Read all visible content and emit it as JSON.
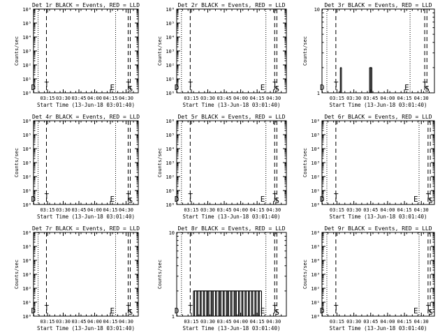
{
  "chart_data": [
    {
      "type": "line",
      "title": "Det 1r BLACK = Events, RED = LLD",
      "xlabel": "Start Time (13-Jun-18 03:01:40)",
      "ylabel": "Counts/sec",
      "ylog": true,
      "ylim": [
        1,
        1000000
      ],
      "yticks": [
        "10⁰",
        "10¹",
        "10²",
        "10³",
        "10⁴",
        "10⁵",
        "10⁶"
      ],
      "xlim": [
        "03:01:40",
        "04:41:40"
      ],
      "xticks": [
        "03:15",
        "03:30",
        "03:45",
        "04:00",
        "04:15",
        "04:30"
      ],
      "markers": [
        {
          "time": "03:06",
          "style": "dotted",
          "label": "D"
        },
        {
          "time": "03:14",
          "style": "dashed",
          "label": "T"
        },
        {
          "time": "04:20",
          "style": "dotted",
          "label": "E"
        },
        {
          "time": "04:32",
          "style": "dashed",
          "label": "T"
        },
        {
          "time": "04:34",
          "style": "dashed",
          "label": "S"
        }
      ],
      "series": []
    },
    {
      "type": "line",
      "title": "Det 2r BLACK = Events, RED = LLD",
      "xlabel": "Start Time (13-Jun-18 03:01:40)",
      "ylabel": "Counts/sec",
      "ylog": true,
      "ylim": [
        1,
        1000000
      ],
      "yticks": [
        "10⁰",
        "10¹",
        "10²",
        "10³",
        "10⁴",
        "10⁵",
        "10⁶"
      ],
      "xlim": [
        "03:01:40",
        "04:41:40"
      ],
      "xticks": [
        "03:15",
        "03:30",
        "03:45",
        "04:00",
        "04:15",
        "04:30"
      ],
      "markers": [
        {
          "time": "03:06",
          "style": "dotted",
          "label": "D"
        },
        {
          "time": "03:14",
          "style": "dashed",
          "label": "T"
        },
        {
          "time": "04:23",
          "style": "dotted",
          "label": "E"
        },
        {
          "time": "04:31",
          "style": "dashed",
          "label": "T"
        },
        {
          "time": "04:33",
          "style": "dashed",
          "label": "S"
        }
      ],
      "series": []
    },
    {
      "type": "line",
      "title": "Det 3r BLACK = Events, RED = LLD",
      "xlabel": "Start Time (13-Jun-18 03:01:40)",
      "ylabel": "Counts/sec",
      "ylog": true,
      "ylim": [
        1,
        10
      ],
      "yticks": [
        "1",
        "10"
      ],
      "xlim": [
        "03:01:40",
        "04:41:40"
      ],
      "xticks": [
        "03:15",
        "03:30",
        "03:45",
        "04:00",
        "04:15",
        "04:30"
      ],
      "markers": [
        {
          "time": "03:06",
          "style": "dotted",
          "label": "D"
        },
        {
          "time": "03:14",
          "style": "dashed",
          "label": "T"
        },
        {
          "time": "04:20",
          "style": "dotted",
          "label": "E"
        },
        {
          "time": "04:33",
          "style": "dashed",
          "label": "T"
        },
        {
          "time": "04:35",
          "style": "dashed",
          "label": "S"
        }
      ],
      "series": [
        {
          "color": "#000000",
          "spikes": [
            {
              "time": "03:18",
              "value": 2
            },
            {
              "time": "03:19",
              "value": 2
            },
            {
              "time": "03:44",
              "value": 2
            },
            {
              "time": "03:45",
              "value": 2
            },
            {
              "time": "03:46",
              "value": 2
            }
          ]
        }
      ]
    },
    {
      "type": "line",
      "title": "Det 4r BLACK = Events, RED = LLD",
      "xlabel": "Start Time (13-Jun-18 03:01:40)",
      "ylabel": "Counts/sec",
      "ylog": true,
      "ylim": [
        1,
        1000000
      ],
      "yticks": [
        "10⁰",
        "10¹",
        "10²",
        "10³",
        "10⁴",
        "10⁵",
        "10⁶"
      ],
      "xlim": [
        "03:01:40",
        "04:41:40"
      ],
      "xticks": [
        "03:15",
        "03:30",
        "03:45",
        "04:00",
        "04:15",
        "04:30"
      ],
      "markers": [
        {
          "time": "03:06",
          "style": "dotted",
          "label": "D"
        },
        {
          "time": "03:14",
          "style": "dashed",
          "label": "T"
        },
        {
          "time": "04:20",
          "style": "dotted",
          "label": "E"
        },
        {
          "time": "04:32",
          "style": "dashed",
          "label": "T"
        },
        {
          "time": "04:34",
          "style": "dashed",
          "label": "S"
        }
      ],
      "series": []
    },
    {
      "type": "line",
      "title": "Det 5r BLACK = Events, RED = LLD",
      "xlabel": "Start Time (13-Jun-18 03:01:40)",
      "ylabel": "Counts/sec",
      "ylog": true,
      "ylim": [
        1,
        1000000
      ],
      "yticks": [
        "10⁰",
        "10¹",
        "10²",
        "10³",
        "10⁴",
        "10⁵",
        "10⁶"
      ],
      "xlim": [
        "03:01:40",
        "04:41:40"
      ],
      "xticks": [
        "03:15",
        "03:30",
        "03:45",
        "04:00",
        "04:15",
        "04:30"
      ],
      "markers": [
        {
          "time": "03:06",
          "style": "dotted",
          "label": "D"
        },
        {
          "time": "03:14",
          "style": "dashed",
          "label": "T"
        },
        {
          "time": "04:23",
          "style": "dotted",
          "label": "E"
        },
        {
          "time": "04:31",
          "style": "dashed",
          "label": "T"
        },
        {
          "time": "04:33",
          "style": "dashed",
          "label": "S"
        }
      ],
      "series": []
    },
    {
      "type": "line",
      "title": "Det 6r BLACK = Events, RED = LLD",
      "xlabel": "Start Time (13-Jun-18 03:01:40)",
      "ylabel": "Counts/sec",
      "ylog": true,
      "ylim": [
        1,
        1000000
      ],
      "yticks": [
        "10⁰",
        "10¹",
        "10²",
        "10³",
        "10⁴",
        "10⁵",
        "10⁶"
      ],
      "xlim": [
        "03:01:40",
        "04:41:40"
      ],
      "xticks": [
        "03:15",
        "03:30",
        "03:45",
        "04:00",
        "04:15",
        "04:30"
      ],
      "markers": [
        {
          "time": "03:06",
          "style": "dotted",
          "label": "D"
        },
        {
          "time": "03:14",
          "style": "dashed",
          "label": "T"
        },
        {
          "time": "04:28",
          "style": "dotted",
          "label": "E"
        },
        {
          "time": "04:36",
          "style": "dashed",
          "label": "T"
        },
        {
          "time": "04:38",
          "style": "dashed",
          "label": "S"
        }
      ],
      "series": []
    },
    {
      "type": "line",
      "title": "Det 7r BLACK = Events, RED = LLD",
      "xlabel": "Start Time (13-Jun-18 03:01:40)",
      "ylabel": "Counts/sec",
      "ylog": true,
      "ylim": [
        1,
        1000000
      ],
      "yticks": [
        "10⁰",
        "10¹",
        "10²",
        "10³",
        "10⁴",
        "10⁵",
        "10⁶"
      ],
      "xlim": [
        "03:01:40",
        "04:41:40"
      ],
      "xticks": [
        "03:15",
        "03:30",
        "03:45",
        "04:00",
        "04:15",
        "04:30"
      ],
      "markers": [
        {
          "time": "03:06",
          "style": "dotted",
          "label": "D"
        },
        {
          "time": "03:14",
          "style": "dashed",
          "label": "T"
        },
        {
          "time": "04:20",
          "style": "dotted",
          "label": "E"
        },
        {
          "time": "04:32",
          "style": "dashed",
          "label": "T"
        },
        {
          "time": "04:34",
          "style": "dashed",
          "label": "S"
        }
      ],
      "series": []
    },
    {
      "type": "line",
      "title": "Det 8r BLACK = Events, RED = LLD",
      "xlabel": "Start Time (13-Jun-18 03:01:40)",
      "ylabel": "Counts/sec",
      "ylog": true,
      "ylim": [
        1,
        10
      ],
      "yticks": [
        "1",
        "10"
      ],
      "xlim": [
        "03:01:40",
        "04:41:40"
      ],
      "xticks": [
        "03:15",
        "03:30",
        "03:45",
        "04:00",
        "04:15",
        "04:30"
      ],
      "markers": [
        {
          "time": "03:06",
          "style": "dotted",
          "label": "D"
        },
        {
          "time": "03:14",
          "style": "dashed",
          "label": "T"
        },
        {
          "time": "04:23",
          "style": "dotted",
          "label": "E"
        },
        {
          "time": "04:31",
          "style": "dashed",
          "label": "T"
        },
        {
          "time": "04:33",
          "style": "dashed",
          "label": "S"
        }
      ],
      "series": [
        {
          "color": "#000000",
          "spikes": [
            {
              "time": "03:17",
              "value": 2
            },
            {
              "time": "03:18",
              "value": 2
            },
            {
              "time": "03:20",
              "value": 2
            },
            {
              "time": "03:21",
              "value": 2
            },
            {
              "time": "03:23",
              "value": 2
            },
            {
              "time": "03:24",
              "value": 2
            },
            {
              "time": "03:26",
              "value": 2
            },
            {
              "time": "03:27",
              "value": 2
            },
            {
              "time": "03:29",
              "value": 2
            },
            {
              "time": "03:30",
              "value": 2
            },
            {
              "time": "03:31",
              "value": 2
            },
            {
              "time": "03:33",
              "value": 2
            },
            {
              "time": "03:34",
              "value": 2
            },
            {
              "time": "03:35",
              "value": 2
            },
            {
              "time": "03:37",
              "value": 2
            },
            {
              "time": "03:38",
              "value": 2
            },
            {
              "time": "03:40",
              "value": 2
            },
            {
              "time": "03:41",
              "value": 2
            },
            {
              "time": "03:42",
              "value": 2
            },
            {
              "time": "03:44",
              "value": 2
            },
            {
              "time": "03:45",
              "value": 2
            },
            {
              "time": "03:47",
              "value": 2
            },
            {
              "time": "03:48",
              "value": 2
            },
            {
              "time": "03:49",
              "value": 2
            },
            {
              "time": "03:51",
              "value": 2
            },
            {
              "time": "03:52",
              "value": 2
            },
            {
              "time": "03:54",
              "value": 2
            },
            {
              "time": "03:55",
              "value": 2
            },
            {
              "time": "03:56",
              "value": 2
            },
            {
              "time": "03:58",
              "value": 2
            },
            {
              "time": "03:59",
              "value": 2
            },
            {
              "time": "04:01",
              "value": 2
            },
            {
              "time": "04:02",
              "value": 2
            },
            {
              "time": "04:04",
              "value": 2
            },
            {
              "time": "04:05",
              "value": 2
            },
            {
              "time": "04:07",
              "value": 2
            },
            {
              "time": "04:08",
              "value": 2
            },
            {
              "time": "04:10",
              "value": 2
            },
            {
              "time": "04:11",
              "value": 2
            },
            {
              "time": "04:13",
              "value": 2
            },
            {
              "time": "04:14",
              "value": 2
            },
            {
              "time": "04:16",
              "value": 2
            },
            {
              "time": "04:17",
              "value": 2
            },
            {
              "time": "04:19",
              "value": 2
            }
          ]
        }
      ]
    },
    {
      "type": "line",
      "title": "Det 9r BLACK = Events, RED = LLD",
      "xlabel": "Start Time (13-Jun-18 03:01:40)",
      "ylabel": "Counts/sec",
      "ylog": true,
      "ylim": [
        1,
        1000000
      ],
      "yticks": [
        "10⁰",
        "10¹",
        "10²",
        "10³",
        "10⁴",
        "10⁵",
        "10⁶"
      ],
      "xlim": [
        "03:01:40",
        "04:41:40"
      ],
      "xticks": [
        "03:15",
        "03:30",
        "03:45",
        "04:00",
        "04:15",
        "04:30"
      ],
      "markers": [
        {
          "time": "03:06",
          "style": "dotted",
          "label": "D"
        },
        {
          "time": "03:14",
          "style": "dashed",
          "label": "T"
        },
        {
          "time": "04:28",
          "style": "dotted",
          "label": "E"
        },
        {
          "time": "04:36",
          "style": "dashed",
          "label": "T"
        },
        {
          "time": "04:38",
          "style": "dashed",
          "label": "S"
        }
      ],
      "series": []
    }
  ]
}
